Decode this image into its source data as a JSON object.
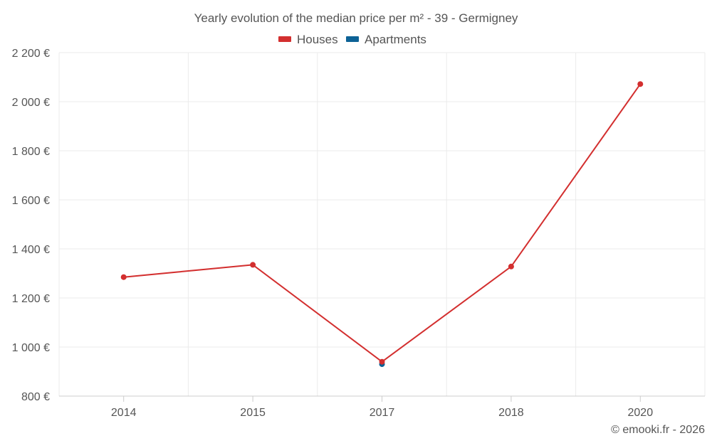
{
  "chart_data": {
    "type": "line",
    "title": "Yearly evolution of the median price per m² - 39 - Germigney",
    "categories": [
      "2014",
      "2015",
      "2017",
      "2018",
      "2020"
    ],
    "series": [
      {
        "name": "Houses",
        "color": "#d32f2f",
        "values": [
          1285,
          1335,
          940,
          1328,
          2072
        ]
      },
      {
        "name": "Apartments",
        "color": "#0d6296",
        "values": [
          null,
          null,
          930,
          null,
          null
        ]
      }
    ],
    "ylim": [
      800,
      2200
    ],
    "yticks": [
      800,
      1000,
      1200,
      1400,
      1600,
      1800,
      2000,
      2200
    ],
    "ytick_labels": [
      "800 €",
      "1 000 €",
      "1 200 €",
      "1 400 €",
      "1 600 €",
      "1 800 €",
      "2 000 €",
      "2 200 €"
    ],
    "xlabel": "",
    "ylabel": "",
    "grid": true,
    "legend_position": "top-center",
    "credit": "© emooki.fr - 2026"
  }
}
